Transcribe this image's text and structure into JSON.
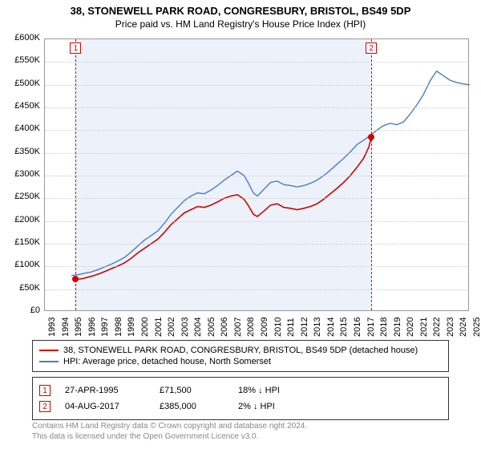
{
  "title": "38, STONEWELL PARK ROAD, CONGRESBURY, BRISTOL, BS49 5DP",
  "subtitle": "Price paid vs. HM Land Registry's House Price Index (HPI)",
  "chart": {
    "type": "line",
    "background_color": "#ffffff",
    "grid_color": "#cccccc",
    "shaded_color": "rgba(220,230,245,0.5)",
    "x_min": 1993,
    "x_max": 2025,
    "y_min": 0,
    "y_max": 600000,
    "ylabels": [
      "£0",
      "£50K",
      "£100K",
      "£150K",
      "£200K",
      "£250K",
      "£300K",
      "£350K",
      "£400K",
      "£450K",
      "£500K",
      "£550K",
      "£600K"
    ],
    "yticks": [
      0,
      50000,
      100000,
      150000,
      200000,
      250000,
      300000,
      350000,
      400000,
      450000,
      500000,
      550000,
      600000
    ],
    "xticks": [
      1993,
      1994,
      1995,
      1996,
      1997,
      1998,
      1999,
      2000,
      2001,
      2002,
      2003,
      2004,
      2005,
      2006,
      2007,
      2008,
      2009,
      2010,
      2011,
      2012,
      2013,
      2014,
      2015,
      2016,
      2017,
      2018,
      2019,
      2020,
      2021,
      2022,
      2023,
      2024,
      2025
    ],
    "series": [
      {
        "name": "38, STONEWELL PARK ROAD, CONGRESBURY, BRISTOL, BS49 5DP (detached house)",
        "color": "#d40000",
        "width": 1.6,
        "data": [
          [
            1995.32,
            71500
          ],
          [
            1995.8,
            73000
          ],
          [
            1996.2,
            76000
          ],
          [
            1996.7,
            80000
          ],
          [
            1997.1,
            84000
          ],
          [
            1997.6,
            90000
          ],
          [
            1998.0,
            95000
          ],
          [
            1998.5,
            101000
          ],
          [
            1999.0,
            108000
          ],
          [
            1999.5,
            118000
          ],
          [
            2000.0,
            130000
          ],
          [
            2000.5,
            140000
          ],
          [
            2001.0,
            150000
          ],
          [
            2001.5,
            160000
          ],
          [
            2002.0,
            175000
          ],
          [
            2002.5,
            192000
          ],
          [
            2003.0,
            205000
          ],
          [
            2003.5,
            218000
          ],
          [
            2004.0,
            225000
          ],
          [
            2004.5,
            232000
          ],
          [
            2005.0,
            230000
          ],
          [
            2005.5,
            235000
          ],
          [
            2006.0,
            242000
          ],
          [
            2006.5,
            250000
          ],
          [
            2007.0,
            255000
          ],
          [
            2007.5,
            258000
          ],
          [
            2008.0,
            248000
          ],
          [
            2008.3,
            235000
          ],
          [
            2008.7,
            215000
          ],
          [
            2009.0,
            210000
          ],
          [
            2009.5,
            222000
          ],
          [
            2010.0,
            235000
          ],
          [
            2010.5,
            238000
          ],
          [
            2011.0,
            230000
          ],
          [
            2011.5,
            228000
          ],
          [
            2012.0,
            225000
          ],
          [
            2012.5,
            228000
          ],
          [
            2013.0,
            232000
          ],
          [
            2013.5,
            238000
          ],
          [
            2014.0,
            248000
          ],
          [
            2014.5,
            260000
          ],
          [
            2015.0,
            272000
          ],
          [
            2015.5,
            285000
          ],
          [
            2016.0,
            300000
          ],
          [
            2016.5,
            318000
          ],
          [
            2017.0,
            338000
          ],
          [
            2017.4,
            363000
          ],
          [
            2017.59,
            385000
          ]
        ]
      },
      {
        "name": "HPI: Average price, detached house, North Somerset",
        "color": "#4a7bc8",
        "width": 1.4,
        "data": [
          [
            1995.0,
            80000
          ],
          [
            1995.5,
            82000
          ],
          [
            1996.0,
            85000
          ],
          [
            1996.5,
            88000
          ],
          [
            1997.0,
            93000
          ],
          [
            1997.5,
            99000
          ],
          [
            1998.0,
            105000
          ],
          [
            1998.5,
            112000
          ],
          [
            1999.0,
            120000
          ],
          [
            1999.5,
            132000
          ],
          [
            2000.0,
            145000
          ],
          [
            2000.5,
            158000
          ],
          [
            2001.0,
            168000
          ],
          [
            2001.5,
            178000
          ],
          [
            2002.0,
            195000
          ],
          [
            2002.5,
            215000
          ],
          [
            2003.0,
            230000
          ],
          [
            2003.5,
            245000
          ],
          [
            2004.0,
            255000
          ],
          [
            2004.5,
            262000
          ],
          [
            2005.0,
            260000
          ],
          [
            2005.5,
            268000
          ],
          [
            2006.0,
            278000
          ],
          [
            2006.5,
            290000
          ],
          [
            2007.0,
            300000
          ],
          [
            2007.5,
            310000
          ],
          [
            2008.0,
            300000
          ],
          [
            2008.3,
            285000
          ],
          [
            2008.7,
            262000
          ],
          [
            2009.0,
            255000
          ],
          [
            2009.5,
            270000
          ],
          [
            2010.0,
            285000
          ],
          [
            2010.5,
            288000
          ],
          [
            2011.0,
            280000
          ],
          [
            2011.5,
            278000
          ],
          [
            2012.0,
            275000
          ],
          [
            2012.5,
            278000
          ],
          [
            2013.0,
            283000
          ],
          [
            2013.5,
            290000
          ],
          [
            2014.0,
            300000
          ],
          [
            2014.5,
            312000
          ],
          [
            2015.0,
            325000
          ],
          [
            2015.5,
            338000
          ],
          [
            2016.0,
            352000
          ],
          [
            2016.5,
            368000
          ],
          [
            2017.0,
            378000
          ],
          [
            2017.5,
            388000
          ],
          [
            2018.0,
            400000
          ],
          [
            2018.5,
            410000
          ],
          [
            2019.0,
            415000
          ],
          [
            2019.5,
            412000
          ],
          [
            2020.0,
            418000
          ],
          [
            2020.5,
            435000
          ],
          [
            2021.0,
            455000
          ],
          [
            2021.5,
            478000
          ],
          [
            2022.0,
            508000
          ],
          [
            2022.5,
            530000
          ],
          [
            2023.0,
            520000
          ],
          [
            2023.5,
            510000
          ],
          [
            2024.0,
            505000
          ],
          [
            2024.5,
            502000
          ],
          [
            2025.0,
            500000
          ]
        ]
      }
    ],
    "shaded_range": [
      1995.32,
      2017.59
    ],
    "markers": [
      {
        "num": "1",
        "x": 1995.32,
        "y": 71500,
        "color": "#d40000"
      },
      {
        "num": "2",
        "x": 2017.59,
        "y": 385000,
        "color": "#d40000"
      }
    ]
  },
  "legend": [
    {
      "color": "#d40000",
      "label": "38, STONEWELL PARK ROAD, CONGRESBURY, BRISTOL, BS49 5DP (detached house)"
    },
    {
      "color": "#4a7bc8",
      "label": "HPI: Average price, detached house, North Somerset"
    }
  ],
  "sales": [
    {
      "num": "1",
      "color": "#d40000",
      "date": "27-APR-1995",
      "price": "£71,500",
      "diff": "18% ↓ HPI"
    },
    {
      "num": "2",
      "color": "#d40000",
      "date": "04-AUG-2017",
      "price": "£385,000",
      "diff": "2% ↓ HPI"
    }
  ],
  "footer_line1": "Contains HM Land Registry data © Crown copyright and database right 2024.",
  "footer_line2": "This data is licensed under the Open Government Licence v3.0."
}
